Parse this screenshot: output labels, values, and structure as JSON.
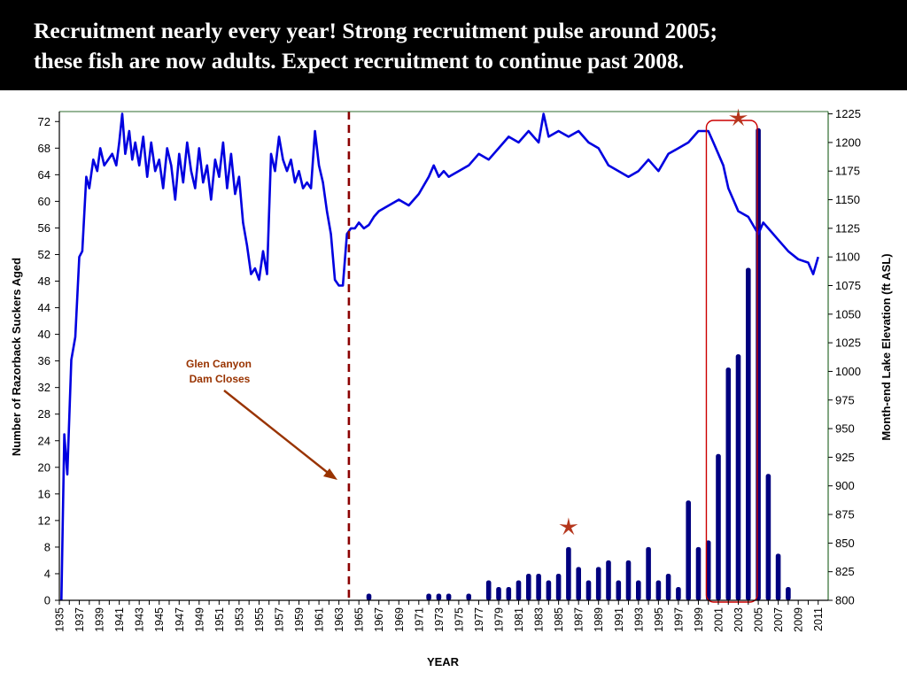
{
  "header": {
    "line1": "Recruitment nearly every year!  Strong recruitment pulse around 2005;",
    "line2": "these fish are now adults.  Expect recruitment to continue past 2008."
  },
  "colors": {
    "title_bg": "#000000",
    "title_text": "#ffffff",
    "bar": "#00007F",
    "line": "#0000E0",
    "dam_line": "#8B0000",
    "annotation": "#993300",
    "highlight_box": "#CC0000",
    "star": "#B5361C",
    "plot_border": "#2E6B2E"
  },
  "chart_data": {
    "type": "bar+line",
    "xlabel": "YEAR",
    "ylabel_left": "Number of Razorback Suckers Aged",
    "ylabel_right": "Month-end Lake Elevation (ft ASL)",
    "x_ticks": [
      "1935",
      "1937",
      "1939",
      "1941",
      "1943",
      "1945",
      "1947",
      "1949",
      "1951",
      "1953",
      "1955",
      "1957",
      "1959",
      "1961",
      "1963",
      "1965",
      "1967",
      "1969",
      "1971",
      "1973",
      "1975",
      "1977",
      "1979",
      "1981",
      "1983",
      "1985",
      "1987",
      "1989",
      "1991",
      "1993",
      "1995",
      "1997",
      "1999",
      "2001",
      "2003",
      "2005",
      "2007",
      "2009",
      "2011"
    ],
    "y_left_ticks": [
      0,
      4,
      8,
      12,
      16,
      20,
      24,
      28,
      32,
      36,
      40,
      44,
      48,
      52,
      56,
      60,
      64,
      68,
      72
    ],
    "y_left_range": [
      0,
      73.5
    ],
    "y_right_ticks": [
      800,
      825,
      850,
      875,
      900,
      925,
      950,
      975,
      1000,
      1025,
      1050,
      1075,
      1100,
      1125,
      1150,
      1175,
      1200,
      1225
    ],
    "y_right_range": [
      800,
      1227
    ],
    "x_range": [
      1935,
      2012
    ],
    "bars": {
      "name": "Number of Razorback Suckers Aged",
      "years": [
        1966,
        1972,
        1973,
        1974,
        1976,
        1978,
        1979,
        1980,
        1981,
        1982,
        1983,
        1984,
        1985,
        1986,
        1987,
        1988,
        1989,
        1990,
        1991,
        1992,
        1993,
        1994,
        1995,
        1996,
        1997,
        1998,
        1999,
        2000,
        2001,
        2002,
        2003,
        2004,
        2005,
        2006,
        2007,
        2008
      ],
      "values": [
        1,
        1,
        1,
        1,
        1,
        3,
        2,
        2,
        3,
        4,
        4,
        3,
        4,
        8,
        5,
        3,
        5,
        6,
        3,
        6,
        3,
        8,
        3,
        4,
        2,
        15,
        8,
        9,
        22,
        35,
        37,
        50,
        71,
        19,
        7,
        2
      ]
    },
    "elevation": {
      "name": "Month-end Lake Elevation (ft ASL)",
      "years": [
        1935.2,
        1935.5,
        1935.8,
        1936.2,
        1936.6,
        1937.0,
        1937.3,
        1937.7,
        1938.0,
        1938.4,
        1938.8,
        1939.1,
        1939.5,
        1939.9,
        1940.3,
        1940.7,
        1941.0,
        1941.3,
        1941.6,
        1942.0,
        1942.3,
        1942.6,
        1943.0,
        1943.4,
        1943.8,
        1944.2,
        1944.6,
        1945.0,
        1945.4,
        1945.8,
        1946.2,
        1946.6,
        1947.0,
        1947.4,
        1947.8,
        1948.2,
        1948.6,
        1949.0,
        1949.4,
        1949.8,
        1950.2,
        1950.6,
        1951.0,
        1951.4,
        1951.8,
        1952.2,
        1952.6,
        1953.0,
        1953.4,
        1953.8,
        1954.2,
        1954.6,
        1955.0,
        1955.4,
        1955.8,
        1956.2,
        1956.6,
        1957.0,
        1957.4,
        1957.8,
        1958.2,
        1958.6,
        1959.0,
        1959.4,
        1959.8,
        1960.2,
        1960.6,
        1961.0,
        1961.4,
        1961.8,
        1962.2,
        1962.6,
        1963.0,
        1963.4,
        1963.8,
        1964.2,
        1964.6,
        1965.0,
        1965.5,
        1966.0,
        1966.5,
        1967.0,
        1968.0,
        1969.0,
        1970.0,
        1971.0,
        1972.0,
        1972.5,
        1973.0,
        1973.5,
        1974.0,
        1975.0,
        1976.0,
        1977.0,
        1978.0,
        1979.0,
        1980.0,
        1981.0,
        1982.0,
        1983.0,
        1983.5,
        1984.0,
        1985.0,
        1986.0,
        1987.0,
        1988.0,
        1989.0,
        1990.0,
        1991.0,
        1992.0,
        1993.0,
        1994.0,
        1995.0,
        1996.0,
        1997.0,
        1998.0,
        1999.0,
        2000.0,
        2000.5,
        2001.0,
        2001.5,
        2002.0,
        2002.5,
        2003.0,
        2004.0,
        2005.0,
        2005.5,
        2006.0,
        2007.0,
        2008.0,
        2009.0,
        2010.0,
        2010.5,
        2011.0
      ],
      "values": [
        800,
        945,
        910,
        1010,
        1030,
        1100,
        1105,
        1170,
        1160,
        1185,
        1175,
        1195,
        1180,
        1185,
        1190,
        1180,
        1200,
        1225,
        1190,
        1210,
        1185,
        1200,
        1180,
        1205,
        1170,
        1200,
        1175,
        1185,
        1160,
        1195,
        1180,
        1150,
        1190,
        1165,
        1200,
        1175,
        1160,
        1195,
        1165,
        1180,
        1150,
        1185,
        1170,
        1200,
        1160,
        1190,
        1155,
        1170,
        1130,
        1110,
        1085,
        1090,
        1080,
        1105,
        1085,
        1190,
        1175,
        1205,
        1185,
        1175,
        1185,
        1165,
        1175,
        1160,
        1165,
        1160,
        1210,
        1180,
        1165,
        1140,
        1120,
        1080,
        1075,
        1075,
        1120,
        1125,
        1125,
        1130,
        1125,
        1128,
        1135,
        1140,
        1145,
        1150,
        1145,
        1155,
        1170,
        1180,
        1170,
        1175,
        1170,
        1175,
        1180,
        1190,
        1185,
        1195,
        1205,
        1200,
        1210,
        1200,
        1225,
        1205,
        1210,
        1205,
        1210,
        1200,
        1195,
        1180,
        1175,
        1170,
        1175,
        1185,
        1175,
        1190,
        1195,
        1200,
        1210,
        1210,
        1200,
        1190,
        1180,
        1160,
        1150,
        1140,
        1135,
        1120,
        1130,
        1125,
        1115,
        1105,
        1098,
        1095,
        1085,
        1100
      ]
    },
    "events": [
      {
        "year": 1964,
        "label": "Glen Canyon Dam Closes"
      }
    ],
    "annotation": {
      "line1": "Glen Canyon",
      "line2": "Dam Closes"
    },
    "highlight": {
      "from": 1999.8,
      "to": 2004.9
    },
    "stars": [
      {
        "year": 1986,
        "count": 11
      },
      {
        "year": 2003,
        "count": 72.5
      }
    ],
    "grid": false
  }
}
